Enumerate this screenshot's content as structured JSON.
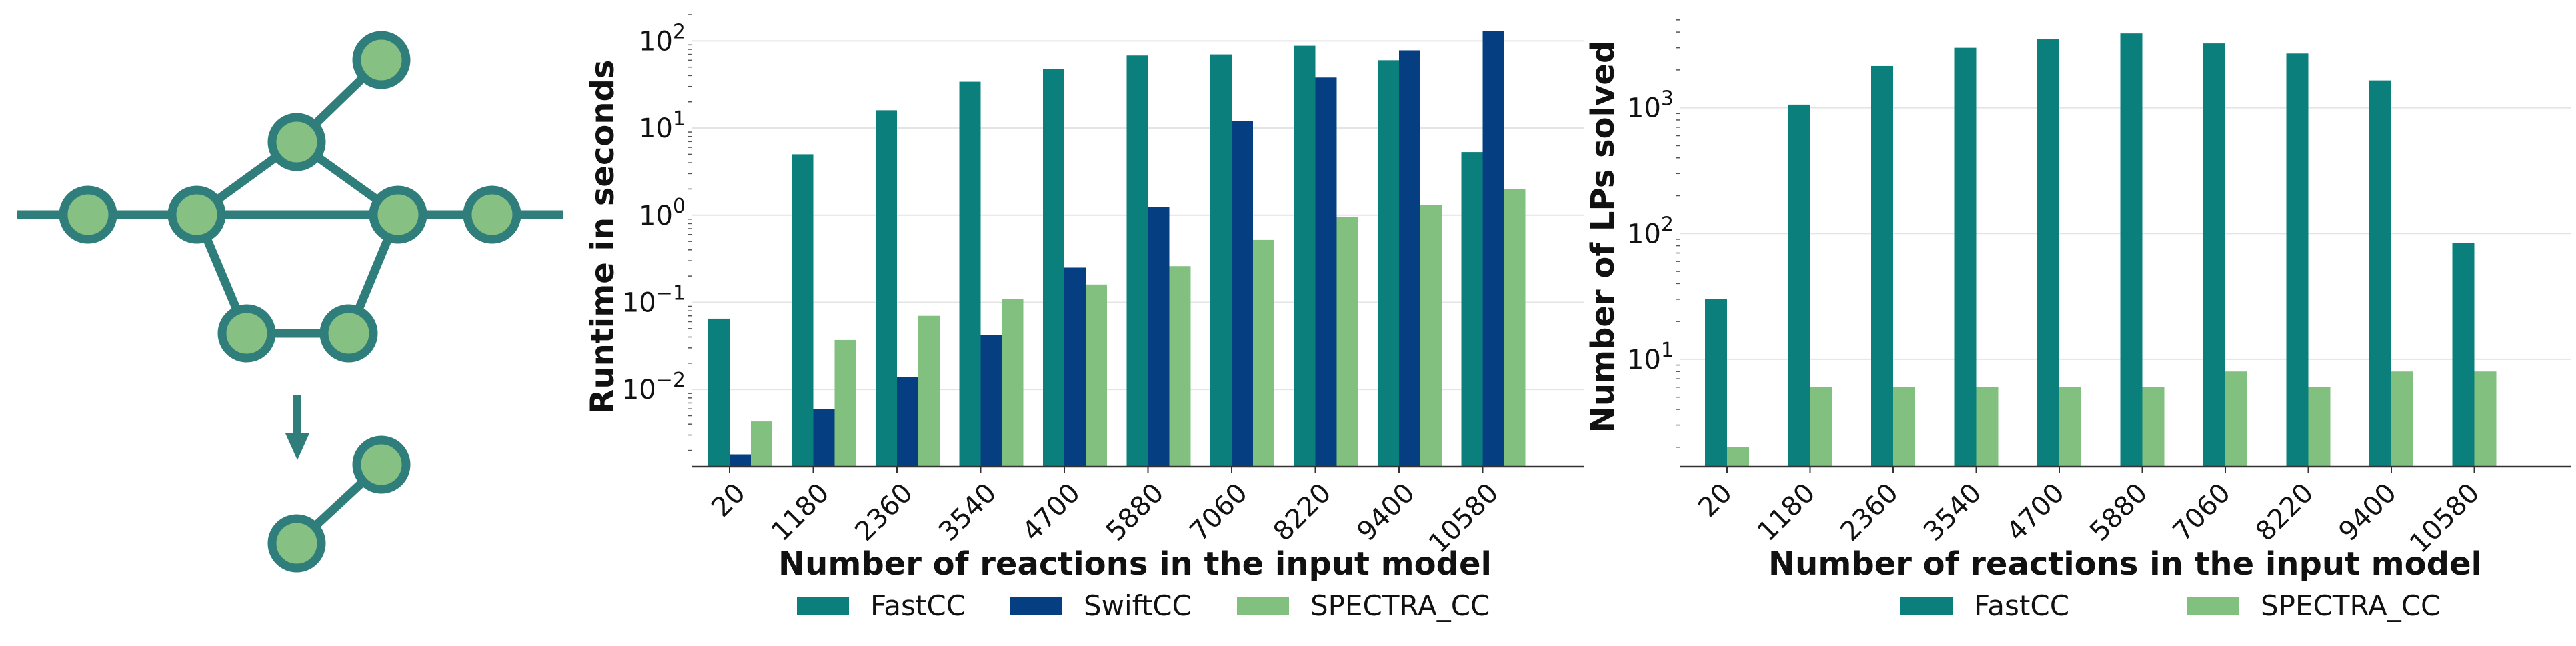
{
  "colors": {
    "FastCC": "#0b7f7c",
    "SwiftCC": "#053f82",
    "SPECTRA_CC": "#82c07f",
    "graph_node_fill": "#86c083",
    "graph_stroke": "#2f7e7b"
  },
  "diagram": {
    "description_icon": "network-reduction-diagram",
    "arrow_icon": "down-arrow-icon"
  },
  "chart_data": [
    {
      "type": "bar",
      "categories": [
        "20",
        "1180",
        "2360",
        "3540",
        "4700",
        "5880",
        "7060",
        "8220",
        "9400",
        "10580"
      ],
      "series": [
        {
          "name": "FastCC",
          "values": [
            0.065,
            5.0,
            16.0,
            34.0,
            48.0,
            68.0,
            70.0,
            88.0,
            60.0,
            5.3
          ]
        },
        {
          "name": "SwiftCC",
          "values": [
            0.0018,
            0.006,
            0.014,
            0.042,
            0.25,
            1.25,
            12.0,
            38.0,
            78.0,
            130.0
          ]
        },
        {
          "name": "SPECTRA_CC",
          "values": [
            0.0043,
            0.037,
            0.07,
            0.11,
            0.16,
            0.26,
            0.52,
            0.95,
            1.3,
            2.0
          ]
        }
      ],
      "xlabel": "Number of reactions in the input model",
      "ylabel": "Runtime in seconds",
      "yscale": "log",
      "ylim": [
        0.0013,
        200
      ],
      "yticks": [
        {
          "value": 0.01,
          "base": "10",
          "exp": "−2"
        },
        {
          "value": 0.1,
          "base": "10",
          "exp": "−1"
        },
        {
          "value": 1,
          "base": "10",
          "exp": "0"
        },
        {
          "value": 10,
          "base": "10",
          "exp": "1"
        },
        {
          "value": 100,
          "base": "10",
          "exp": "2"
        }
      ],
      "grid": "horizontal",
      "legend": "bottom"
    },
    {
      "type": "bar",
      "categories": [
        "20",
        "1180",
        "2360",
        "3540",
        "4700",
        "5880",
        "7060",
        "8220",
        "9400",
        "10580"
      ],
      "series": [
        {
          "name": "FastCC",
          "values": [
            30,
            1060,
            2150,
            3000,
            3500,
            3900,
            3250,
            2700,
            1650,
            84
          ]
        },
        {
          "name": "SPECTRA_CC",
          "values": [
            2,
            6,
            6,
            6,
            6,
            6,
            8,
            6,
            8,
            8
          ]
        }
      ],
      "xlabel": "Number of reactions in the input model",
      "ylabel": "Number of LPs solved",
      "yscale": "log",
      "ylim": [
        1.4,
        5500
      ],
      "yticks": [
        {
          "value": 10,
          "base": "10",
          "exp": "1"
        },
        {
          "value": 100,
          "base": "10",
          "exp": "2"
        },
        {
          "value": 1000,
          "base": "10",
          "exp": "3"
        }
      ],
      "grid": "horizontal",
      "legend": "bottom"
    }
  ]
}
